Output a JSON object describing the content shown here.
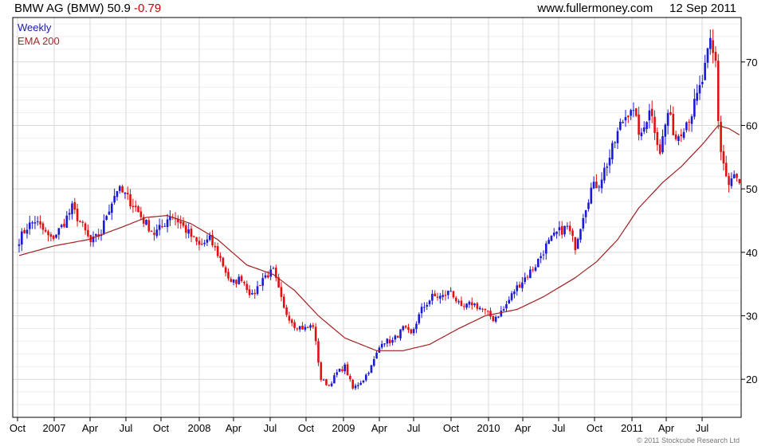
{
  "header": {
    "name": "BMW AG (BMW)",
    "price": "50.9",
    "change": "-0.79",
    "site": "www.fullermoney.com",
    "date": "12 Sep 2011"
  },
  "legend": {
    "weekly": "Weekly",
    "ema": "EMA 200"
  },
  "copyright": "© 2011 Stockcube Research Ltd",
  "colors": {
    "up": "#1a1ad6",
    "down": "#e01010",
    "ema": "#a02020",
    "grid": "#d8d8d8",
    "axis": "#000000"
  },
  "chart_data": {
    "type": "candlestick",
    "x_ticks": [
      "Oct",
      "2007",
      "Apr",
      "Jul",
      "Oct",
      "2008",
      "Apr",
      "Jul",
      "Oct",
      "2009",
      "Apr",
      "Jul",
      "Oct",
      "2010",
      "Apr",
      "Jul",
      "Oct",
      "2011",
      "Apr",
      "Jul"
    ],
    "y_ticks": [
      "20",
      "30",
      "40",
      "50",
      "60",
      "70"
    ],
    "y_range": [
      14,
      77
    ],
    "grid": true,
    "close_anchors": [
      [
        0,
        42
      ],
      [
        3,
        44
      ],
      [
        6,
        45
      ],
      [
        9,
        43.5
      ],
      [
        12,
        42
      ],
      [
        16,
        44
      ],
      [
        20,
        47
      ],
      [
        24,
        44
      ],
      [
        27,
        41.5
      ],
      [
        31,
        43
      ],
      [
        33,
        46
      ],
      [
        37,
        50
      ],
      [
        40,
        49
      ],
      [
        44,
        47
      ],
      [
        47,
        45
      ],
      [
        51,
        43
      ],
      [
        54,
        44
      ],
      [
        57,
        46
      ],
      [
        60,
        45
      ],
      [
        64,
        43
      ],
      [
        68,
        41
      ],
      [
        72,
        42
      ],
      [
        76,
        39
      ],
      [
        80,
        35
      ],
      [
        84,
        36
      ],
      [
        88,
        33
      ],
      [
        92,
        36
      ],
      [
        96,
        37
      ],
      [
        100,
        31
      ],
      [
        104,
        28.5
      ],
      [
        108,
        28
      ],
      [
        111,
        28.5
      ],
      [
        114,
        20
      ],
      [
        117,
        19
      ],
      [
        120,
        21
      ],
      [
        123,
        22
      ],
      [
        126,
        18.5
      ],
      [
        130,
        20
      ],
      [
        133,
        22
      ],
      [
        137,
        26
      ],
      [
        141,
        26
      ],
      [
        145,
        28
      ],
      [
        148,
        27
      ],
      [
        152,
        31
      ],
      [
        156,
        33
      ],
      [
        160,
        33
      ],
      [
        163,
        34
      ],
      [
        167,
        31
      ],
      [
        171,
        32
      ],
      [
        175,
        31
      ],
      [
        179,
        29.5
      ],
      [
        183,
        31
      ],
      [
        187,
        34
      ],
      [
        191,
        36
      ],
      [
        195,
        38
      ],
      [
        199,
        41
      ],
      [
        203,
        43
      ],
      [
        207,
        44
      ],
      [
        210,
        41
      ],
      [
        213,
        46
      ],
      [
        216,
        50
      ],
      [
        219,
        51
      ],
      [
        223,
        55
      ],
      [
        227,
        60
      ],
      [
        231,
        63
      ],
      [
        235,
        58
      ],
      [
        238,
        63
      ],
      [
        242,
        56
      ],
      [
        245,
        62
      ],
      [
        248,
        58
      ],
      [
        251,
        60
      ],
      [
        254,
        62
      ],
      [
        258,
        67
      ],
      [
        261,
        73
      ],
      [
        262,
        71
      ],
      [
        263,
        70
      ],
      [
        264,
        61
      ],
      [
        265,
        56
      ],
      [
        266,
        54
      ],
      [
        267,
        52
      ],
      [
        268,
        50.5
      ],
      [
        270,
        52
      ],
      [
        271,
        51.5
      ],
      [
        272,
        50.9
      ]
    ],
    "ema_200": [
      [
        0,
        39.5
      ],
      [
        13,
        41
      ],
      [
        26,
        42
      ],
      [
        39,
        44
      ],
      [
        48,
        45.5
      ],
      [
        56,
        45.8
      ],
      [
        65,
        44.5
      ],
      [
        75,
        42
      ],
      [
        86,
        38
      ],
      [
        96,
        36.5
      ],
      [
        104,
        34
      ],
      [
        113,
        30
      ],
      [
        123,
        26.5
      ],
      [
        135,
        24.5
      ],
      [
        145,
        24.5
      ],
      [
        155,
        25.5
      ],
      [
        166,
        28
      ],
      [
        176,
        30
      ],
      [
        188,
        31
      ],
      [
        198,
        33
      ],
      [
        210,
        36
      ],
      [
        218,
        38.5
      ],
      [
        226,
        42
      ],
      [
        234,
        47
      ],
      [
        243,
        51
      ],
      [
        250,
        53.5
      ],
      [
        258,
        57
      ],
      [
        264,
        60
      ],
      [
        268,
        59.5
      ],
      [
        272,
        58.5
      ]
    ]
  }
}
